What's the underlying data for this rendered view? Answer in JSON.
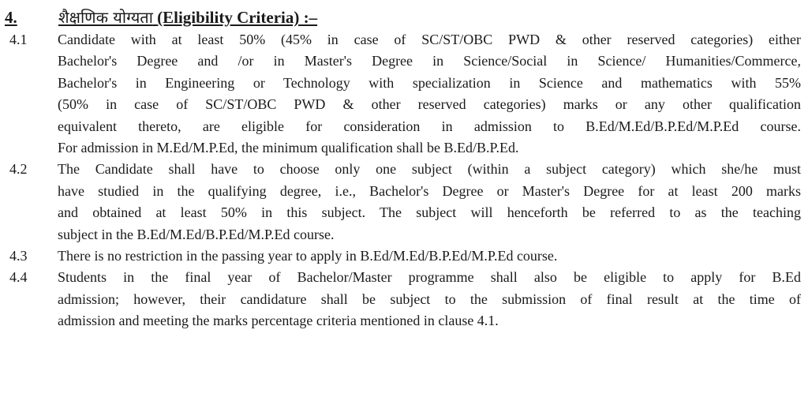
{
  "section": {
    "number": "4.",
    "title_hindi": "शैक्षणिक योग्यता",
    "title_english": "(Eligibility Criteria) :–"
  },
  "clauses": [
    {
      "number": "4.1",
      "lines": [
        "Candidate with at least 50% (45% in case of SC/ST/OBC PWD & other reserved categories) either",
        "Bachelor's Degree and /or in Master's Degree in Science/Social in Science/ Humanities/Commerce,",
        "Bachelor's in Engineering or Technology with specialization in Science and mathematics with 55%",
        "(50% in case of SC/ST/OBC PWD & other reserved categories) marks or any other qualification",
        "equivalent thereto, are eligible for consideration in admission to B.Ed/M.Ed/B.P.Ed/M.P.Ed course.",
        "For admission in M.Ed/M.P.Ed, the minimum qualification shall be B.Ed/B.P.Ed."
      ]
    },
    {
      "number": "4.2",
      "lines": [
        "The Candidate shall have to choose only one subject (within a subject category) which she/he must",
        "have studied in the qualifying degree, i.e., Bachelor's Degree or Master's Degree for at least 200 marks",
        "and obtained at least 50% in this subject. The subject will henceforth be referred to as the teaching",
        "subject in the B.Ed/M.Ed/B.P.Ed/M.P.Ed course."
      ]
    },
    {
      "number": "4.3",
      "lines": [
        "There is no restriction in the passing year to apply in B.Ed/M.Ed/B.P.Ed/M.P.Ed course."
      ]
    },
    {
      "number": "4.4",
      "lines": [
        "Students in the final year of Bachelor/Master programme shall also be eligible to apply for B.Ed",
        "admission; however, their candidature shall be subject to the submission of final result at the time of",
        "admission and meeting the marks percentage criteria mentioned in clause 4.1."
      ]
    }
  ]
}
